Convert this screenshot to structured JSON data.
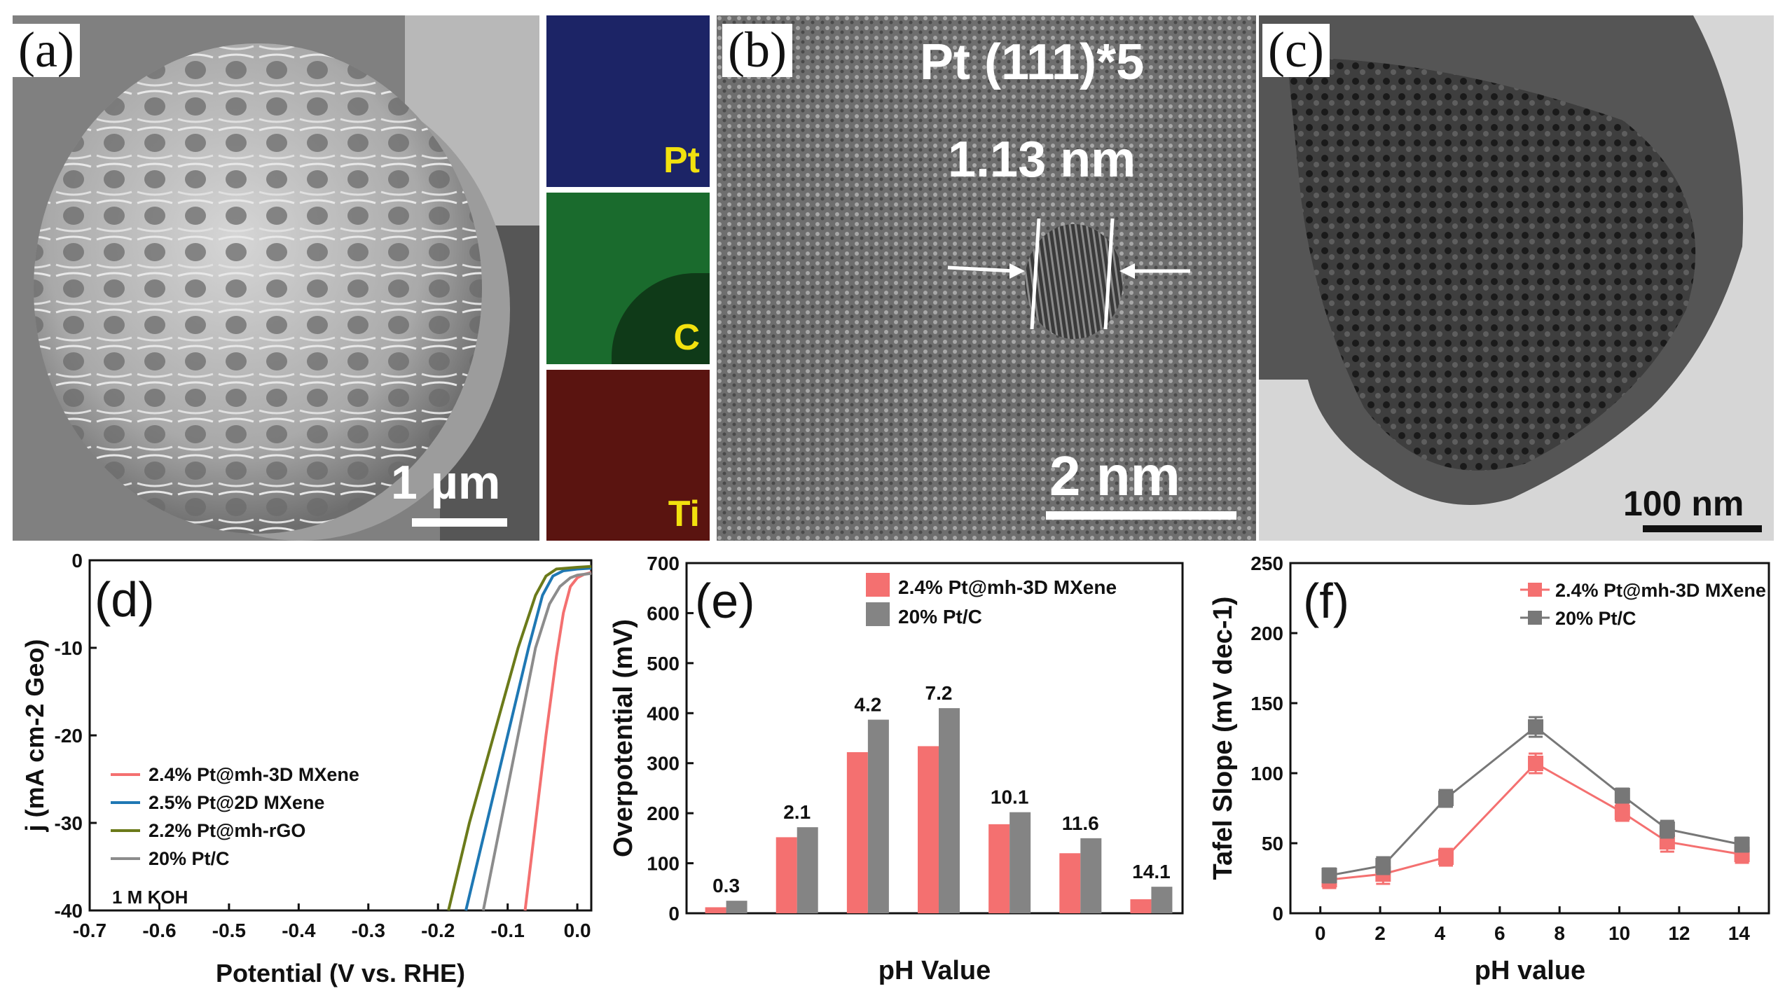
{
  "panels": {
    "a": {
      "label": "(a)",
      "scalebar": "1 µm",
      "eds": [
        {
          "element": "Pt",
          "color": "#2b2f8c"
        },
        {
          "element": "C",
          "color": "#1f8a3a"
        },
        {
          "element": "Ti",
          "color": "#8a1a14"
        }
      ]
    },
    "b": {
      "label": "(b)",
      "lattice_text": "Pt (111)*5",
      "spacing_text": "1.13 nm",
      "scalebar": "2 nm"
    },
    "c": {
      "label": "(c)",
      "scalebar": "100 nm"
    },
    "d": {
      "label": "(d)"
    },
    "e": {
      "label": "(e)"
    },
    "f": {
      "label": "(f)"
    }
  },
  "chart_data": [
    {
      "panel": "d",
      "type": "line",
      "xlabel": "Potential (V vs. RHE)",
      "ylabel": "j (mA cm-2 Geo)",
      "xlim": [
        -0.7,
        0.02
      ],
      "ylim": [
        -40,
        0
      ],
      "xticks": [
        "-0.7",
        "-0.6",
        "-0.5",
        "-0.4",
        "-0.3",
        "-0.2",
        "-0.1",
        "0.0"
      ],
      "yticks": [
        "0",
        "-10",
        "-20",
        "-30",
        "-40"
      ],
      "annotation": "1 M KOH",
      "series": [
        {
          "name": "2.4% Pt@mh-3D MXene",
          "color": "#f47070",
          "x": [
            -0.075,
            -0.06,
            -0.045,
            -0.03,
            -0.02,
            -0.01,
            0.0,
            0.01,
            0.02
          ],
          "y": [
            -40,
            -30,
            -20,
            -11,
            -6,
            -3,
            -2,
            -1.6,
            -1.4
          ]
        },
        {
          "name": "2.5% Pt@2D MXene",
          "color": "#1f78b4",
          "x": [
            -0.16,
            -0.13,
            -0.1,
            -0.07,
            -0.05,
            -0.035,
            -0.02,
            0.0,
            0.02
          ],
          "y": [
            -40,
            -30,
            -20,
            -10,
            -4,
            -1.8,
            -1.2,
            -1.0,
            -0.9
          ]
        },
        {
          "name": "2.2% Pt@mh-rGO",
          "color": "#6b7a1a",
          "x": [
            -0.185,
            -0.155,
            -0.12,
            -0.085,
            -0.06,
            -0.045,
            -0.03,
            0.0,
            0.02
          ],
          "y": [
            -40,
            -30,
            -20,
            -10,
            -4,
            -1.8,
            -1.0,
            -0.8,
            -0.7
          ]
        },
        {
          "name": "20% Pt/C",
          "color": "#8c8c8c",
          "x": [
            -0.135,
            -0.11,
            -0.085,
            -0.06,
            -0.04,
            -0.025,
            -0.01,
            0.0,
            0.02
          ],
          "y": [
            -40,
            -30,
            -20,
            -10,
            -5,
            -3,
            -2,
            -1.7,
            -1.5
          ]
        }
      ]
    },
    {
      "panel": "e",
      "type": "bar",
      "xlabel": "pH Value",
      "ylabel": "Overpotential (mV)",
      "ylim": [
        0,
        700
      ],
      "yticks": [
        "0",
        "100",
        "200",
        "300",
        "400",
        "500",
        "600",
        "700"
      ],
      "categories": [
        "0.3",
        "2.1",
        "4.2",
        "7.2",
        "10.1",
        "11.6",
        "14.1"
      ],
      "series": [
        {
          "name": "2.4% Pt@mh-3D MXene",
          "color": "#f47070",
          "values": [
            12,
            152,
            322,
            334,
            178,
            120,
            28
          ]
        },
        {
          "name": "20% Pt/C",
          "color": "#848484",
          "values": [
            25,
            172,
            387,
            410,
            202,
            150,
            53
          ]
        }
      ]
    },
    {
      "panel": "f",
      "type": "scatter",
      "xlabel": "pH value",
      "ylabel": "Tafel Slope (mV dec-1)",
      "xlim": [
        -1,
        15
      ],
      "ylim": [
        0,
        250
      ],
      "xticks": [
        "0",
        "2",
        "4",
        "6",
        "8",
        "10",
        "12",
        "14"
      ],
      "yticks": [
        "0",
        "50",
        "100",
        "150",
        "200",
        "250"
      ],
      "series": [
        {
          "name": "2.4% Pt@mh-3D MXene",
          "color": "#f47070",
          "x": [
            0.3,
            2.1,
            4.2,
            7.2,
            10.1,
            11.6,
            14.1
          ],
          "y": [
            24,
            28,
            40,
            107,
            72,
            51,
            42
          ],
          "err": [
            6,
            7,
            6,
            7,
            6,
            7,
            6
          ]
        },
        {
          "name": "20% Pt/C",
          "color": "#777777",
          "x": [
            0.3,
            2.1,
            4.2,
            7.2,
            10.1,
            11.6,
            14.1
          ],
          "y": [
            27,
            34,
            82,
            133,
            84,
            60,
            49
          ],
          "err": [
            5,
            6,
            6,
            7,
            5,
            6,
            5
          ]
        }
      ]
    }
  ]
}
